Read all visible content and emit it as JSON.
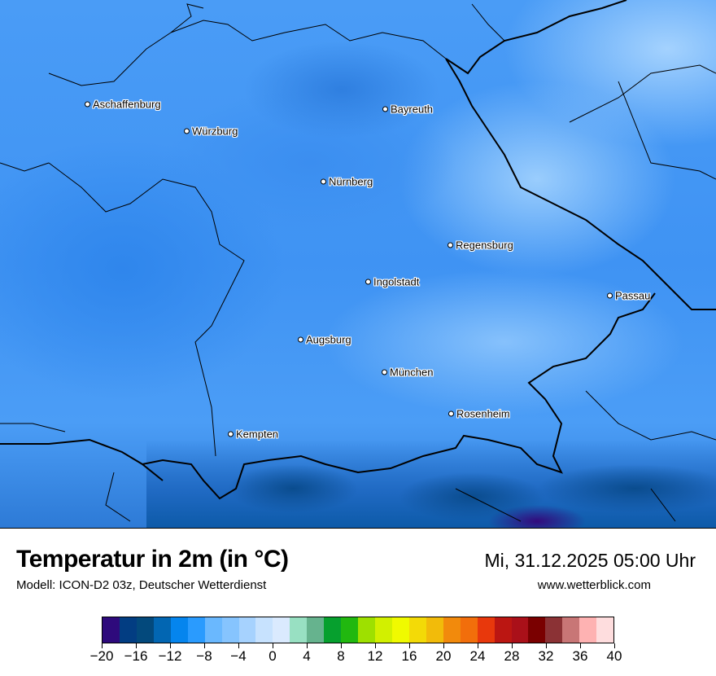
{
  "map": {
    "cities": [
      {
        "name": "Aschaffenburg",
        "lon_label_pos": "nw"
      },
      {
        "name": "Würzburg"
      },
      {
        "name": "Bayreuth"
      },
      {
        "name": "Nürnberg"
      },
      {
        "name": "Regensburg"
      },
      {
        "name": "Ingolstadt"
      },
      {
        "name": "Passau"
      },
      {
        "name": "Augsburg"
      },
      {
        "name": "München"
      },
      {
        "name": "Rosenheim"
      },
      {
        "name": "Kempten"
      }
    ]
  },
  "header": {
    "title": "Temperatur in 2m (in °C)",
    "subtitle": "Modell: ICON-D2 03z, Deutscher Wetterdienst",
    "datetime": "Mi, 31.12.2025 05:00 Uhr",
    "website": "www.wetterblick.com"
  },
  "legend": {
    "min": -20,
    "max": 40,
    "step": 2,
    "tick_labels": [
      "−20",
      "−16",
      "−12",
      "−8",
      "−4",
      "0",
      "4",
      "8",
      "12",
      "16",
      "20",
      "24",
      "28",
      "32",
      "36",
      "40"
    ],
    "colors": [
      "#2e0a7c",
      "#023d82",
      "#03497c",
      "#0266b2",
      "#0585ee",
      "#2a9bfe",
      "#6ab8fe",
      "#86c4fe",
      "#a6d2fe",
      "#c7e2fe",
      "#daeafe",
      "#98e0c2",
      "#66b38e",
      "#06a02e",
      "#21b80f",
      "#9ee000",
      "#d2f000",
      "#f0fa00",
      "#f3da07",
      "#f2bb0a",
      "#f28a0c",
      "#f26e0b",
      "#e8380c",
      "#bb1612",
      "#aa1019",
      "#7a0000",
      "#8b3235",
      "#c87676",
      "#feb2b2",
      "#feddde"
    ]
  }
}
